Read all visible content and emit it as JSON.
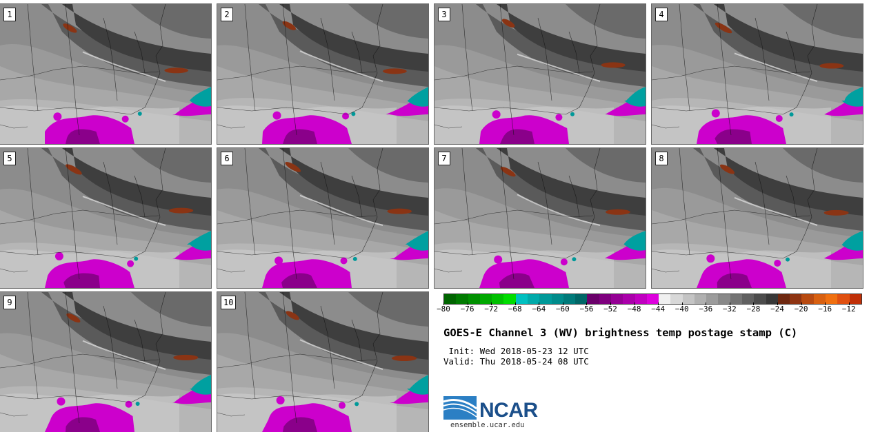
{
  "panels": [
    {
      "label": "1",
      "members": 1
    },
    {
      "label": "2",
      "members": 2
    },
    {
      "label": "3",
      "members": 3
    },
    {
      "label": "4",
      "members": 4
    },
    {
      "label": "5",
      "members": 5
    },
    {
      "label": "6",
      "members": 6
    },
    {
      "label": "7",
      "members": 7
    },
    {
      "label": "8",
      "members": 8
    },
    {
      "label": "9",
      "members": 9
    },
    {
      "label": "10",
      "members": 10
    }
  ],
  "colorbar": {
    "min": -80,
    "max": -10,
    "step": 2,
    "tick_labels": [
      "−80",
      "−76",
      "−72",
      "−68",
      "−64",
      "−60",
      "−56",
      "−52",
      "−48",
      "−44",
      "−40",
      "−36",
      "−32",
      "−28",
      "−24",
      "−20",
      "−16",
      "−12"
    ],
    "tick_values": [
      -80,
      -76,
      -72,
      -68,
      -64,
      -60,
      -56,
      -52,
      -48,
      -44,
      -40,
      -36,
      -32,
      -28,
      -24,
      -20,
      -16,
      -12
    ],
    "colors": [
      "#006400",
      "#007a00",
      "#009000",
      "#00a800",
      "#00c000",
      "#00dd00",
      "#00c0c0",
      "#00aaaa",
      "#009999",
      "#008b8b",
      "#007a7a",
      "#006666",
      "#6a006a",
      "#7e007e",
      "#940094",
      "#aa00aa",
      "#c000c0",
      "#dd00dd",
      "#f0f0f0",
      "#d8d8d8",
      "#c4c4c4",
      "#b0b0b0",
      "#9c9c9c",
      "#888888",
      "#747474",
      "#606060",
      "#4c4c4c",
      "#383838",
      "#6e2810",
      "#8e3412",
      "#b84a10",
      "#d86010",
      "#f07010",
      "#e05010",
      "#c03008"
    ]
  },
  "title": "GOES-E Channel 3 (WV) brightness temp postage stamp (C)",
  "init_line": " Init: Wed 2018-05-23 12 UTC",
  "valid_line": "Valid: Thu 2018-05-24 08 UTC",
  "logo": {
    "word": "NCAR",
    "url": "ensemble.ucar.edu",
    "brand_color": "#1b4f8a",
    "accent_color": "#2b7fc4"
  }
}
